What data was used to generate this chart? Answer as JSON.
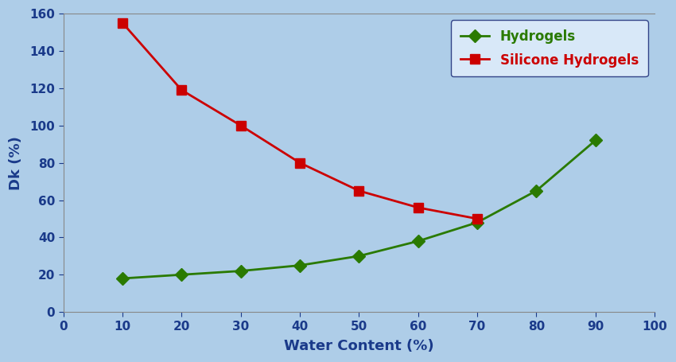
{
  "hydrogels_x": [
    10,
    20,
    30,
    40,
    50,
    60,
    70,
    80,
    90
  ],
  "hydrogels_y": [
    18,
    20,
    22,
    25,
    30,
    38,
    48,
    65,
    92
  ],
  "silicone_x": [
    10,
    20,
    30,
    40,
    50,
    60,
    70
  ],
  "silicone_y": [
    155,
    119,
    100,
    80,
    65,
    56,
    50
  ],
  "hydrogels_color": "#2a7a00",
  "silicone_color": "#cc0000",
  "background_color": "#aecde8",
  "plot_bg_color": "#aecde8",
  "xlabel": "Water Content (%)",
  "ylabel": "Dk (%)",
  "xlim": [
    0,
    100
  ],
  "ylim": [
    0,
    160
  ],
  "xticks": [
    0,
    10,
    20,
    30,
    40,
    50,
    60,
    70,
    80,
    90,
    100
  ],
  "yticks": [
    0,
    20,
    40,
    60,
    80,
    100,
    120,
    140,
    160
  ],
  "hydrogels_label": "Hydrogels",
  "silicone_label": "Silicone Hydrogels",
  "xlabel_fontsize": 13,
  "ylabel_fontsize": 13,
  "tick_fontsize": 11,
  "legend_fontsize": 12,
  "linewidth": 2.0,
  "marker_size_hydrogels": 8,
  "marker_size_silicone": 8,
  "tick_color": "#1a3a8a",
  "label_color": "#1a3a8a",
  "spine_color": "#888888"
}
